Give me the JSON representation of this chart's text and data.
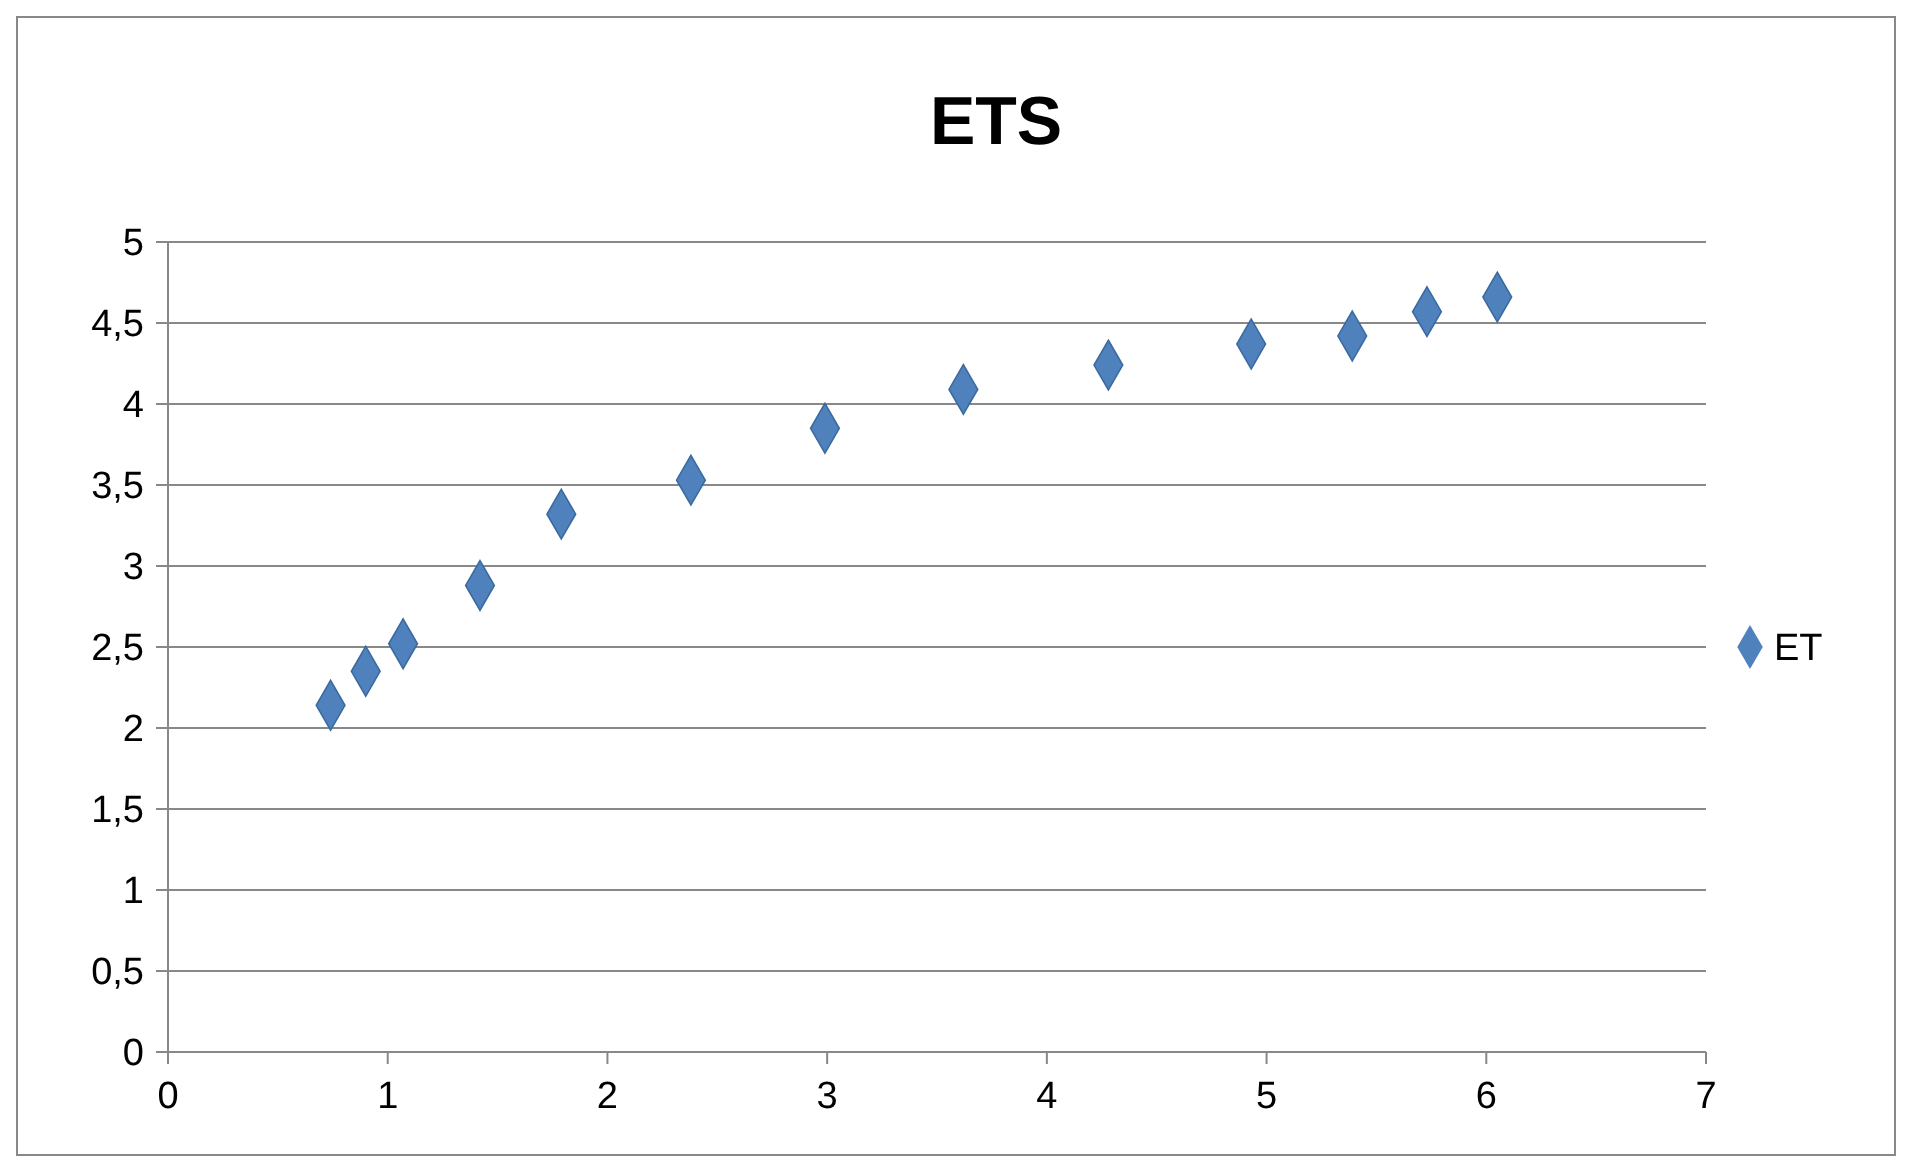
{
  "chart_data": {
    "type": "scatter",
    "title": "ETS",
    "series": [
      {
        "name": "ET",
        "color": "#4f81bd",
        "x": [
          0.74,
          0.9,
          1.07,
          1.42,
          1.79,
          2.38,
          2.99,
          3.62,
          4.28,
          4.93,
          5.39,
          5.73,
          6.05
        ],
        "values": [
          2.14,
          2.35,
          2.52,
          2.88,
          3.32,
          3.53,
          3.85,
          4.09,
          4.24,
          4.37,
          4.42,
          4.57,
          4.66
        ]
      }
    ],
    "xlim": [
      0,
      7
    ],
    "xticks": [
      0,
      1,
      2,
      3,
      4,
      5,
      6,
      7
    ],
    "ylim": [
      0,
      5
    ],
    "yticks": [
      0,
      {
        "value": 0.5,
        "label": "0,5"
      },
      1,
      {
        "value": 1.5,
        "label": "1,5"
      },
      2,
      {
        "value": 2.5,
        "label": "2,5"
      },
      3,
      {
        "value": 3.5,
        "label": "3,5"
      },
      4,
      {
        "value": 4.5,
        "label": "4,5"
      },
      5
    ],
    "grid": "y",
    "legend": "right",
    "marker": "diamond"
  }
}
